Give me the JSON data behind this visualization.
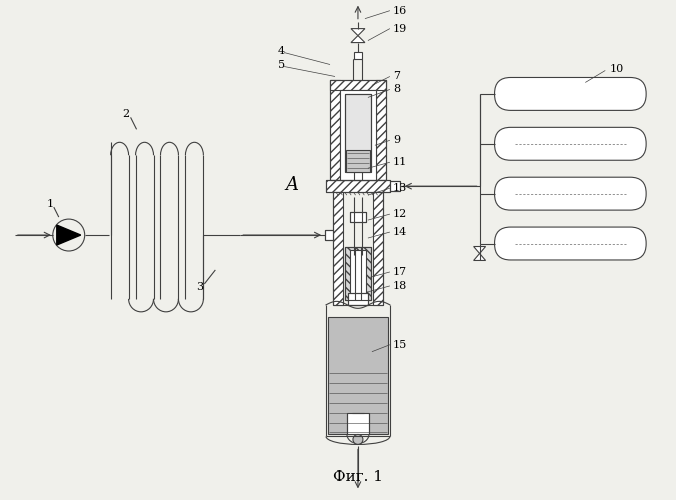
{
  "bg_color": "#f0f0eb",
  "lc": "#404040",
  "title": "Фиг. 1",
  "label_A": "A",
  "font_size": 8,
  "title_font_size": 11
}
